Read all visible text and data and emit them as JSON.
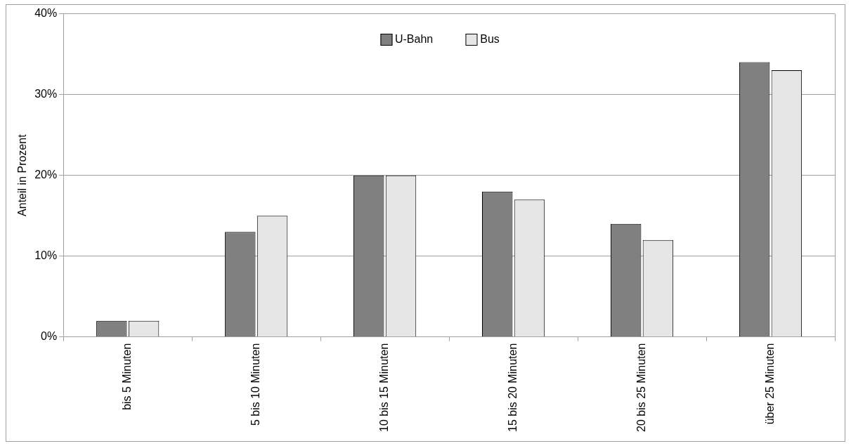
{
  "chart_data": {
    "type": "bar",
    "ylabel": "Anteil in Prozent",
    "categories": [
      "bis 5 Minuten",
      "5 bis 10 Minuten",
      "10 bis 15 Minuten",
      "15 bis 20 Minuten",
      "20 bis 25 Minuten",
      "über 25 Minuten"
    ],
    "series": [
      {
        "name": "U-Bahn",
        "color": "#808080",
        "values": [
          2,
          13,
          20,
          18,
          14,
          34
        ]
      },
      {
        "name": "Bus",
        "color": "#e6e6e6",
        "values": [
          2,
          15,
          20,
          17,
          12,
          33
        ]
      }
    ],
    "ylim": [
      0,
      40
    ],
    "yticks": [
      {
        "value": 0,
        "label": "0%"
      },
      {
        "value": 10,
        "label": "10%"
      },
      {
        "value": 20,
        "label": "20%"
      },
      {
        "value": 30,
        "label": "30%"
      },
      {
        "value": 40,
        "label": "40%"
      }
    ],
    "grid": "y",
    "legend": "top"
  }
}
